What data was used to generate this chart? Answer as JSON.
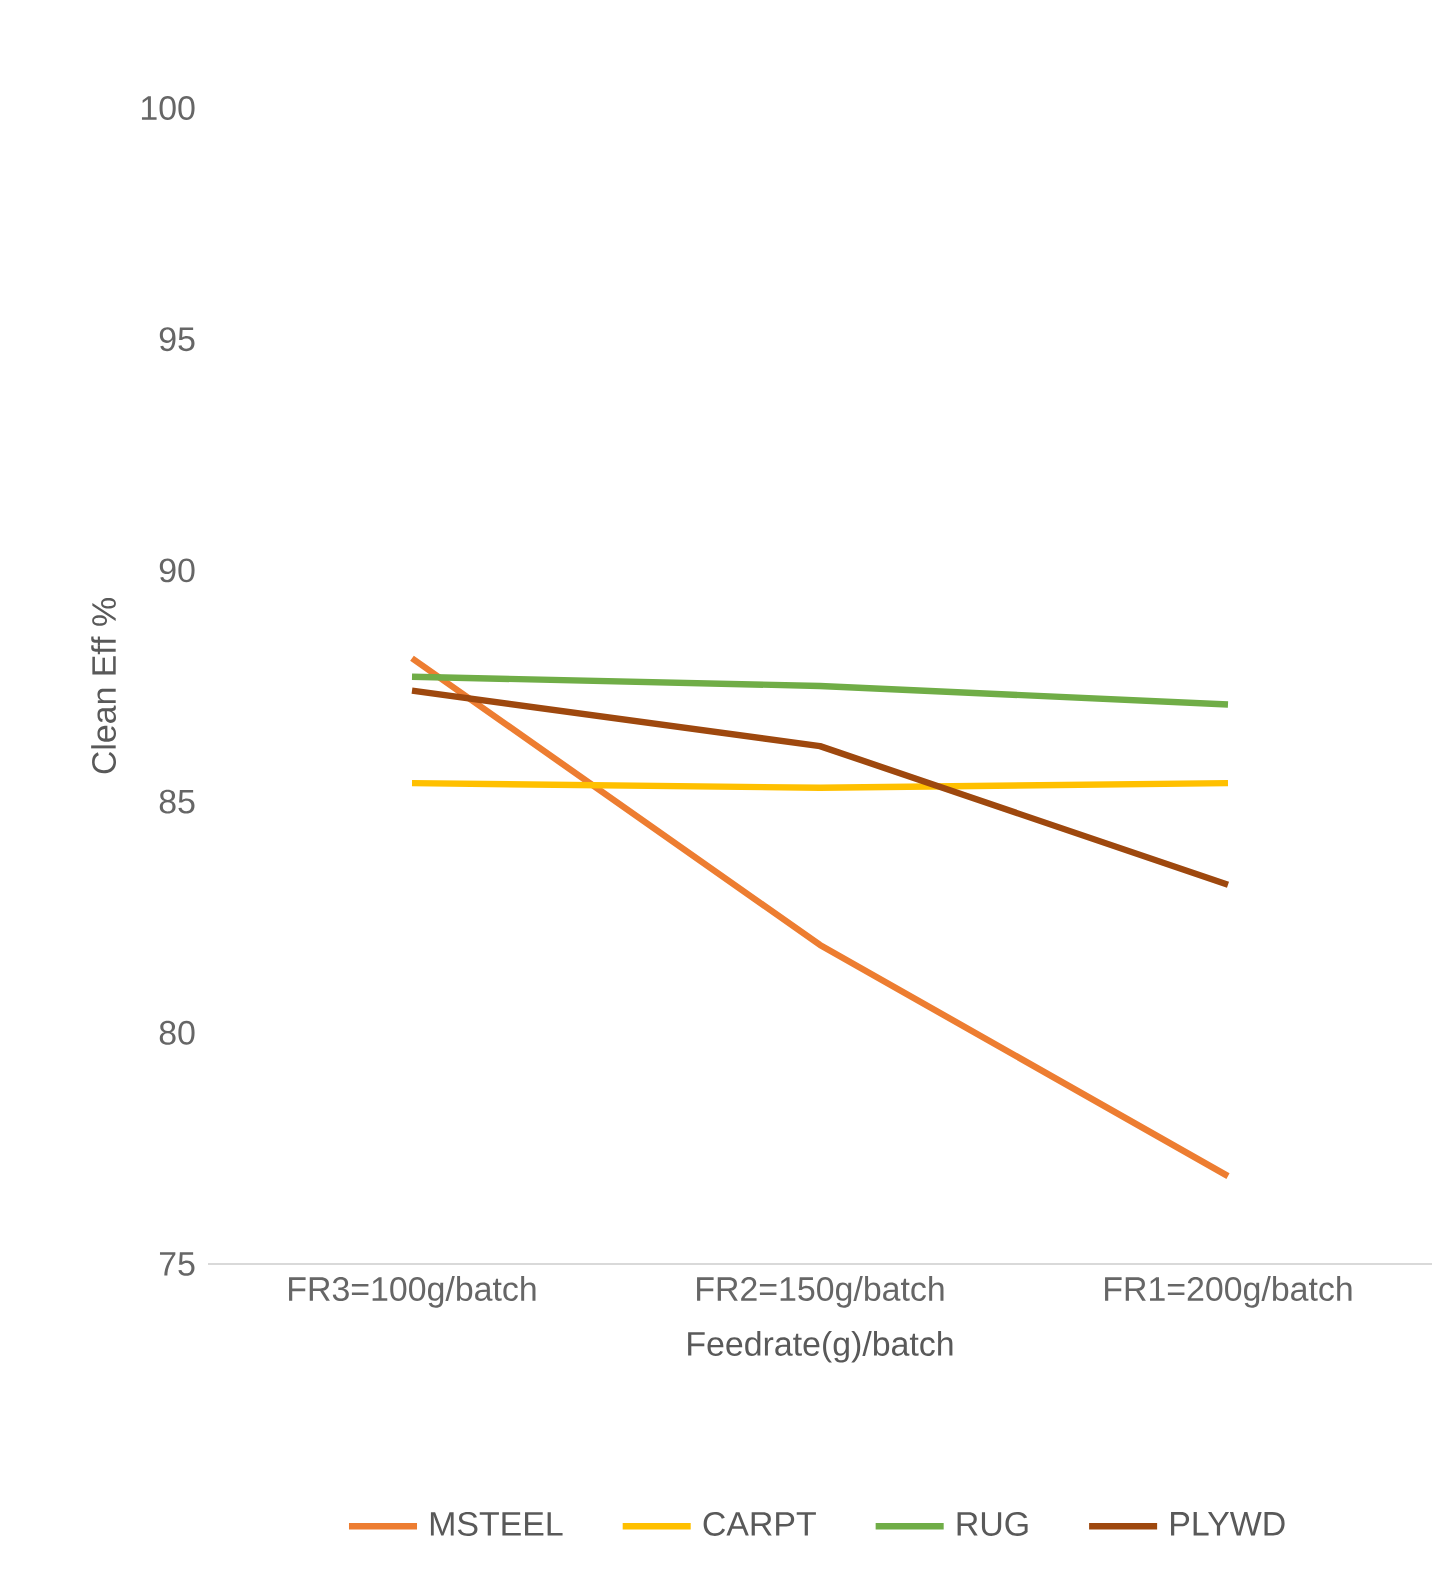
{
  "chart_data": {
    "type": "line",
    "xlabel": "Feedrate(g)/batch",
    "ylabel": "Clean Eff %",
    "categories": [
      "FR3=100g/batch",
      "FR2=150g/batch",
      "FR1=200g/batch"
    ],
    "series": [
      {
        "name": "MSTEEL",
        "color": "#ed7d31",
        "values": [
          88.1,
          81.9,
          76.9
        ]
      },
      {
        "name": "CARPT",
        "color": "#ffc000",
        "values": [
          85.4,
          85.3,
          85.4
        ]
      },
      {
        "name": "RUG",
        "color": "#70ad47",
        "values": [
          87.7,
          87.5,
          87.1
        ]
      },
      {
        "name": "PLYWD",
        "color": "#9e480e",
        "values": [
          87.4,
          86.2,
          83.2
        ]
      }
    ],
    "ylim": [
      75,
      100
    ],
    "yticks": [
      75,
      80,
      85,
      90,
      95,
      100
    ],
    "grid": false,
    "legend": "bottom"
  }
}
